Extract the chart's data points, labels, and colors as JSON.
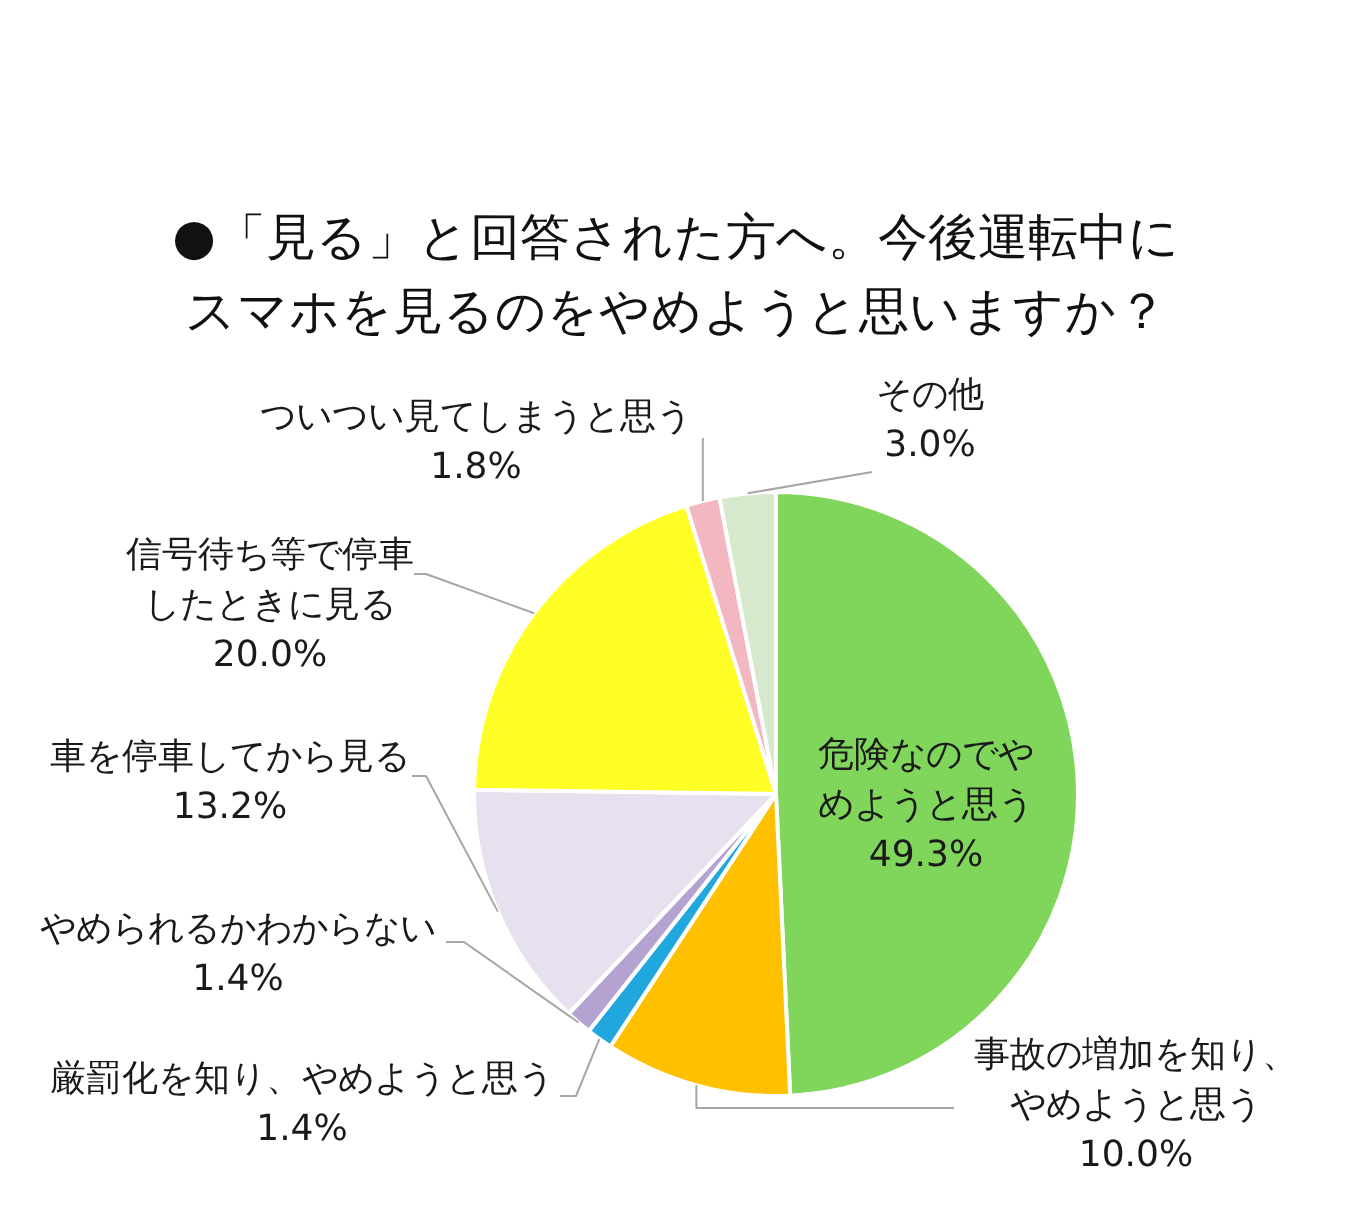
{
  "chart_data": {
    "type": "pie",
    "title": "●「見る」と回答された方へ。今後運転中にスマホを見るのをやめようと思いますか？",
    "categories": [
      "危険なのでやめようと思う",
      "事故の増加を知り、やめようと思う",
      "厳罰化を知り、やめようと思う",
      "やめられるかわからない",
      "車を停車してから見る",
      "信号待ち等で停車したときに見る",
      "ついつい見てしまうと思う",
      "その他"
    ],
    "values": [
      49.3,
      10.0,
      1.4,
      1.4,
      13.2,
      20.0,
      1.8,
      3.0
    ],
    "value_labels": [
      "49.3%",
      "10.0%",
      "1.4%",
      "1.4%",
      "13.2%",
      "20.0%",
      "1.8%",
      "3.0%"
    ],
    "colors": [
      "#80d65a",
      "#ffc000",
      "#1fa7de",
      "#b4a3d1",
      "#e6e0ef",
      "#ffff26",
      "#f2b7c0",
      "#d7e9cc"
    ]
  }
}
